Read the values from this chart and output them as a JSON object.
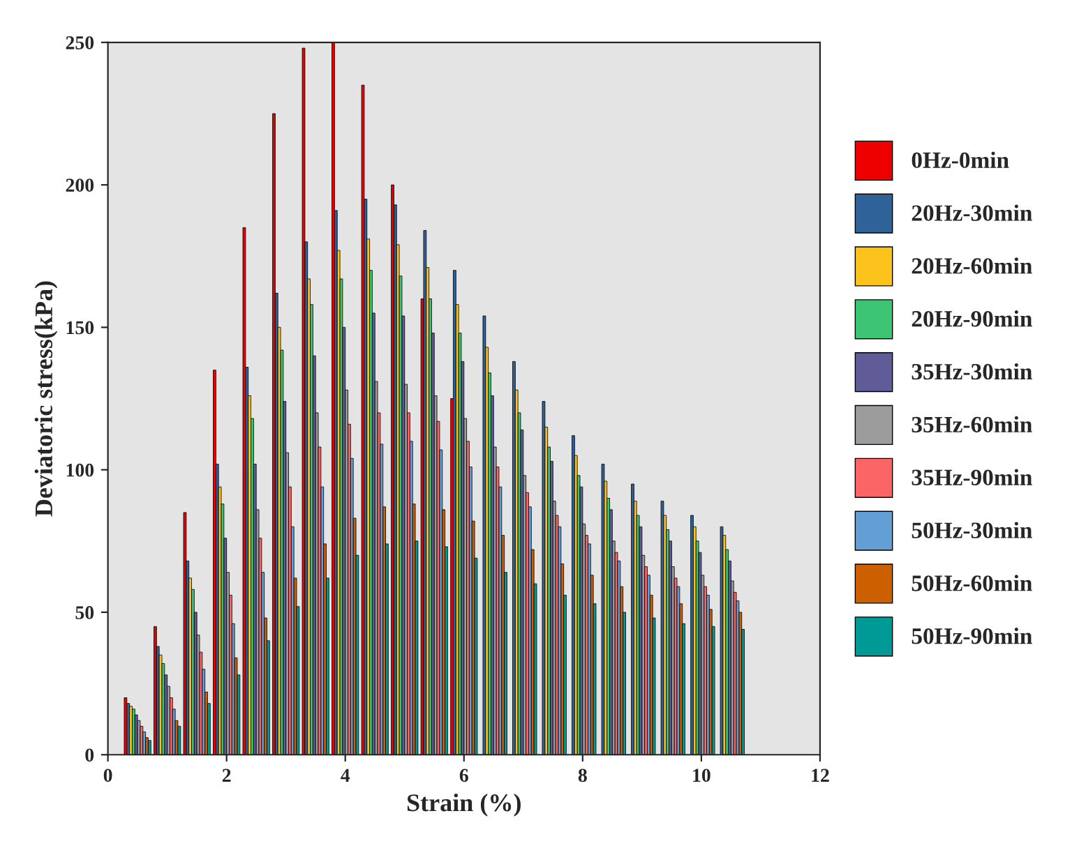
{
  "chart_data": {
    "type": "bar",
    "xlabel": "Strain (%)",
    "ylabel": "Deviatoric stress(kPa)",
    "x": [
      0.5,
      1,
      1.5,
      2,
      2.5,
      3,
      3.5,
      4,
      4.5,
      5,
      5.5,
      6,
      6.5,
      7,
      7.5,
      8,
      8.5,
      9,
      9.5,
      10,
      10.5
    ],
    "xlim": [
      0,
      12
    ],
    "xticks": [
      0,
      2,
      4,
      6,
      8,
      10,
      12
    ],
    "ylim": [
      0,
      250
    ],
    "yticks": [
      0,
      50,
      100,
      150,
      200,
      250
    ],
    "grid": false,
    "legend": "right",
    "series": [
      {
        "name": "0Hz-0min",
        "color": "#ee0000",
        "values": [
          20,
          45,
          85,
          135,
          185,
          225,
          248,
          250,
          235,
          200,
          160,
          125,
          null,
          null,
          null,
          null,
          null,
          null,
          null,
          null,
          null
        ]
      },
      {
        "name": "20Hz-30min",
        "color": "#2f6299",
        "values": [
          18,
          38,
          68,
          102,
          136,
          162,
          180,
          191,
          195,
          193,
          184,
          170,
          154,
          138,
          124,
          112,
          102,
          95,
          89,
          84,
          80
        ]
      },
      {
        "name": "20Hz-60min",
        "color": "#fcc31c",
        "values": [
          17,
          35,
          62,
          94,
          126,
          150,
          167,
          177,
          181,
          179,
          171,
          158,
          143,
          128,
          115,
          105,
          96,
          89,
          84,
          80,
          77
        ]
      },
      {
        "name": "20Hz-90min",
        "color": "#3cc674",
        "values": [
          16,
          32,
          58,
          88,
          118,
          142,
          158,
          167,
          170,
          168,
          160,
          148,
          134,
          120,
          108,
          98,
          90,
          84,
          79,
          75,
          72
        ]
      },
      {
        "name": "35Hz-30min",
        "color": "#5f5c98",
        "values": [
          14,
          28,
          50,
          76,
          102,
          124,
          140,
          150,
          155,
          154,
          148,
          138,
          126,
          114,
          103,
          94,
          86,
          80,
          75,
          71,
          68
        ]
      },
      {
        "name": "35Hz-60min",
        "color": "#9c9c9c",
        "values": [
          12,
          24,
          42,
          64,
          86,
          106,
          120,
          128,
          131,
          130,
          126,
          118,
          108,
          98,
          89,
          81,
          75,
          70,
          66,
          63,
          61
        ]
      },
      {
        "name": "35Hz-90min",
        "color": "#fc6566",
        "values": [
          10,
          20,
          36,
          56,
          76,
          94,
          108,
          116,
          120,
          120,
          117,
          110,
          101,
          92,
          84,
          77,
          71,
          66,
          62,
          59,
          57
        ]
      },
      {
        "name": "50Hz-30min",
        "color": "#639ed4",
        "values": [
          8,
          16,
          30,
          46,
          64,
          80,
          94,
          104,
          109,
          110,
          107,
          101,
          94,
          87,
          80,
          74,
          68,
          63,
          59,
          56,
          54
        ]
      },
      {
        "name": "50Hz-60min",
        "color": "#cc5f00",
        "values": [
          6,
          12,
          22,
          34,
          48,
          62,
          74,
          83,
          87,
          88,
          86,
          82,
          77,
          72,
          67,
          63,
          59,
          56,
          53,
          51,
          50
        ]
      },
      {
        "name": "50Hz-90min",
        "color": "#009a96",
        "values": [
          5,
          10,
          18,
          28,
          40,
          52,
          62,
          70,
          74,
          75,
          73,
          69,
          64,
          60,
          56,
          53,
          50,
          48,
          46,
          45,
          44
        ]
      }
    ]
  }
}
